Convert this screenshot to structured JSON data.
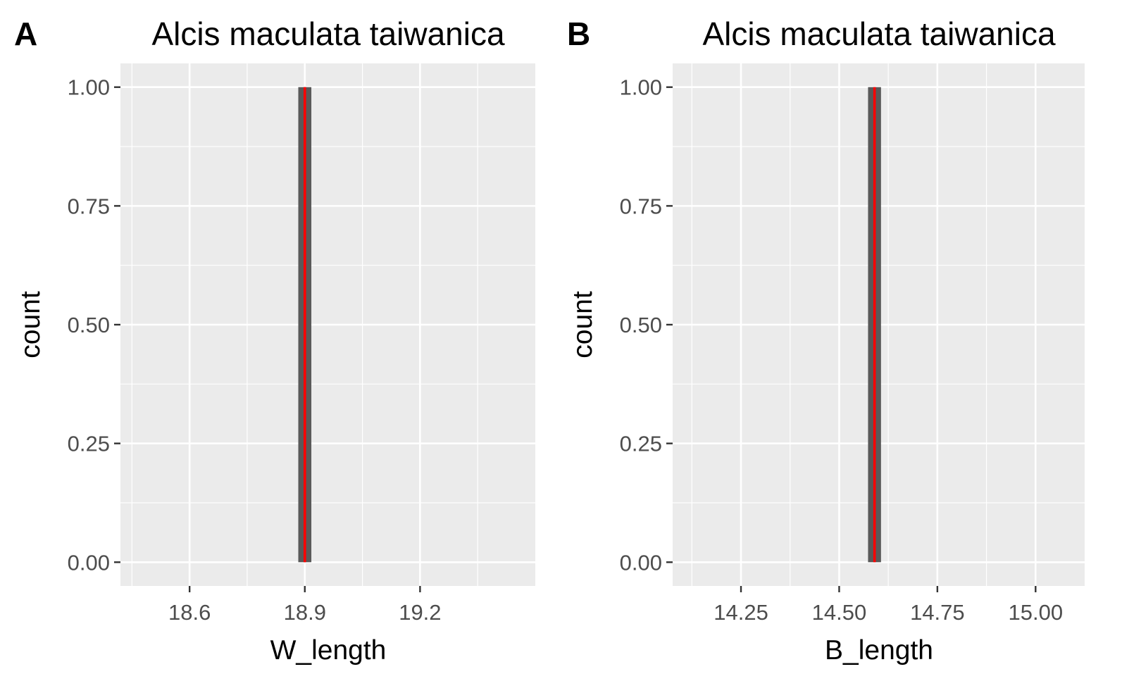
{
  "chart_data": [
    {
      "type": "bar",
      "panel": "A",
      "title": "Alcis maculata taiwanica",
      "xlabel": "W_length",
      "ylabel": "count",
      "xlim": [
        18.42,
        19.5
      ],
      "ylim": [
        -0.05,
        1.05
      ],
      "xticks": [
        18.6,
        18.9,
        19.2
      ],
      "xtick_labels": [
        "18.6",
        "18.9",
        "19.2"
      ],
      "yticks": [
        0,
        0.25,
        0.5,
        0.75,
        1
      ],
      "ytick_labels": [
        "0.00",
        "0.25",
        "0.50",
        "0.75",
        "1.00"
      ],
      "bars": [
        {
          "x": 18.9,
          "width": 0.034,
          "count": 1
        }
      ],
      "mean_line": 18.9,
      "grid": true,
      "legend": "none",
      "colors": {
        "panel_bg": "#ebebeb",
        "grid": "#ffffff",
        "bar": "#595959",
        "mean_line": "#ff0000"
      }
    },
    {
      "type": "bar",
      "panel": "B",
      "title": "Alcis maculata taiwanica",
      "xlabel": "B_length",
      "ylabel": "count",
      "xlim": [
        14.076,
        15.125
      ],
      "ylim": [
        -0.05,
        1.05
      ],
      "xticks": [
        14.25,
        14.5,
        14.75,
        15
      ],
      "xtick_labels": [
        "14.25",
        "14.50",
        "14.75",
        "15.00"
      ],
      "yticks": [
        0,
        0.25,
        0.5,
        0.75,
        1
      ],
      "ytick_labels": [
        "0.00",
        "0.25",
        "0.50",
        "0.75",
        "1.00"
      ],
      "bars": [
        {
          "x": 14.59,
          "width": 0.033,
          "count": 1
        }
      ],
      "mean_line": 14.59,
      "grid": true,
      "legend": "none",
      "colors": {
        "panel_bg": "#ebebeb",
        "grid": "#ffffff",
        "bar": "#595959",
        "mean_line": "#ff0000"
      }
    }
  ]
}
